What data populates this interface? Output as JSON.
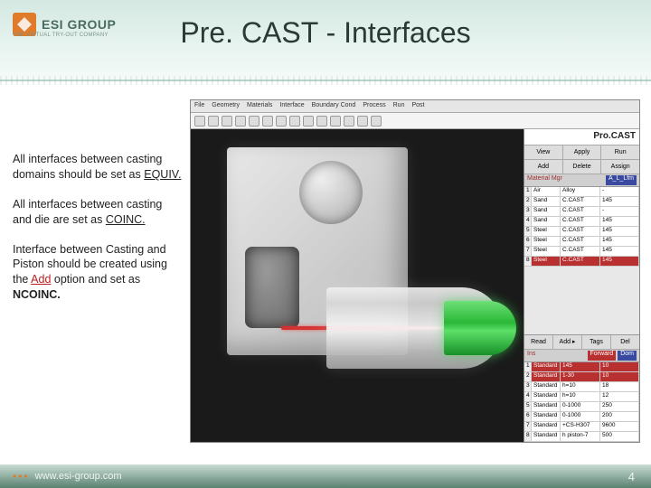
{
  "logo": {
    "company": "ESI GROUP",
    "tagline": "THE VIRTUAL TRY-OUT COMPANY"
  },
  "title": "Pre. CAST - Interfaces",
  "paragraphs": {
    "p1a": "All interfaces between casting domains should be set as ",
    "p1b": "EQUIV.",
    "p2a": "All interfaces between casting and die are set as ",
    "p2b": "COINC.",
    "p3a": "Interface between Casting and Piston should be created using the ",
    "p3add": "Add",
    "p3b": " option and set as ",
    "p3c": "NCOINC."
  },
  "screenshot": {
    "brand": "Pro.CAST",
    "menu": [
      "File",
      "Geometry",
      "Materials",
      "Interface",
      "Boundary Cond",
      "Process",
      "Run",
      "Post"
    ],
    "top_btns": [
      [
        "View",
        "Apply",
        "Run"
      ],
      [
        "Add",
        "Delete",
        "Assign"
      ]
    ],
    "mat_panel": {
      "title_l": "Material  Mgr",
      "title_r": "A_L_Lfm"
    },
    "materials": [
      {
        "n": "1",
        "name": "Air",
        "type": "Alloy",
        "temp": "-"
      },
      {
        "n": "2",
        "name": "Sand",
        "type": "C.CAST",
        "temp": "145"
      },
      {
        "n": "3",
        "name": "Sand",
        "type": "C.CAST",
        "temp": "-"
      },
      {
        "n": "4",
        "name": "Sand",
        "type": "C.CAST",
        "temp": "145"
      },
      {
        "n": "5",
        "name": "Steel",
        "type": "C.CAST",
        "temp": "145"
      },
      {
        "n": "6",
        "name": "Steel",
        "type": "C.CAST",
        "temp": "145"
      },
      {
        "n": "7",
        "name": "Steel",
        "type": "C.CAST",
        "temp": "145"
      },
      {
        "n": "8",
        "name": "Steel",
        "type": "C.CAST",
        "temp": "145"
      }
    ],
    "low_btns": [
      [
        "Read",
        "Add ▸",
        "Tags",
        "Del"
      ]
    ],
    "if_panel": {
      "title_l": "Ins",
      "title_m": "Forward",
      "title_r": "Dom"
    },
    "interfaces": [
      {
        "n": "1",
        "type": "Standard",
        "h": "145",
        "v": "10"
      },
      {
        "n": "2",
        "type": "Standard",
        "h": "1-30",
        "v": "10"
      },
      {
        "n": "3",
        "type": "Standard",
        "h": "h=10",
        "v": "18"
      },
      {
        "n": "4",
        "type": "Standard",
        "h": "h=10",
        "v": "12"
      },
      {
        "n": "5",
        "type": "Standard",
        "h": "0-1000",
        "v": "250"
      },
      {
        "n": "6",
        "type": "Standard",
        "h": "0-1000",
        "v": "200"
      },
      {
        "n": "7",
        "type": "Standard",
        "h": "+CS-H307",
        "v": "9600"
      },
      {
        "n": "8",
        "type": "Standard",
        "h": "h piston-7",
        "v": "500"
      }
    ]
  },
  "footer": {
    "url": "www.esi-group.com",
    "page": "4"
  }
}
